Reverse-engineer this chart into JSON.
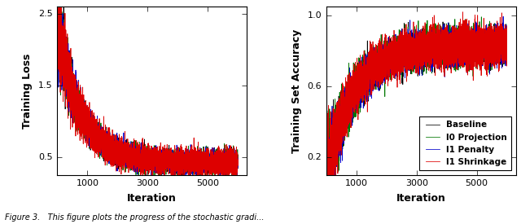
{
  "xlabel": "Iteration",
  "ylabel_left": "Training Loss",
  "ylabel_right": "Training Set Accuracy",
  "xlim": [
    0,
    6300
  ],
  "ylim_left": [
    0.25,
    2.6
  ],
  "ylim_right": [
    0.1,
    1.05
  ],
  "xticks": [
    1000,
    3000,
    5000
  ],
  "yticks_left": [
    0.5,
    1.5,
    2.5
  ],
  "yticks_right": [
    0.2,
    0.6,
    1.0
  ],
  "colors": {
    "baseline": "#000000",
    "l0": "#007700",
    "l1_penalty": "#0000cc",
    "l1_shrinkage": "#dd0000"
  },
  "legend_labels": [
    "Baseline",
    "l0 Projection",
    "l1 Penalty",
    "l1 Shrinkage"
  ],
  "n_iter": 6000,
  "seed": 42,
  "figsize": [
    6.4,
    2.75
  ],
  "dpi": 100,
  "caption": "Figure 3.   This figure plots the progress of the stochastic gradi..."
}
